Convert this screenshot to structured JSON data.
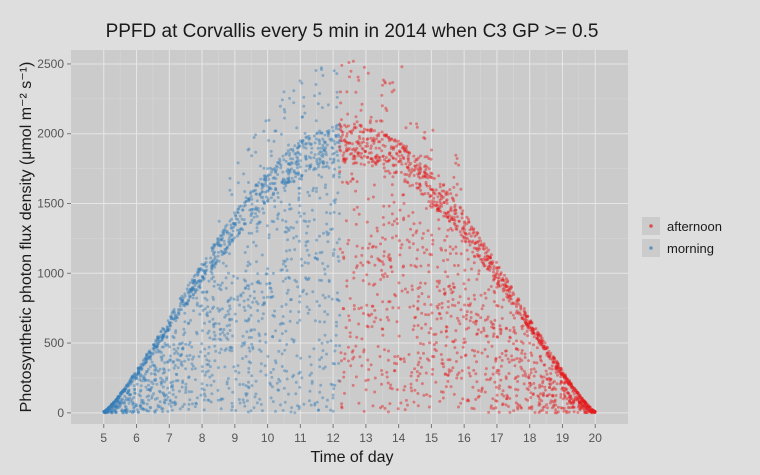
{
  "chart_data": {
    "type": "scatter",
    "title": "PPFD at Corvallis every 5 min in 2014 when C3 GP >= 0.5",
    "xlabel": "Time of day",
    "ylabel": "Photosynthetic photon flux density (μmol m⁻² s⁻¹)",
    "xlim": [
      4.0,
      21.0
    ],
    "ylim": [
      -80,
      2600
    ],
    "xticks": [
      5,
      6,
      7,
      8,
      9,
      10,
      11,
      12,
      13,
      14,
      15,
      16,
      17,
      18,
      19,
      20
    ],
    "yticks": [
      0,
      500,
      1000,
      1500,
      2000,
      2500
    ],
    "grid": true,
    "legend_position": "right",
    "series": [
      {
        "name": "afternoon",
        "color": "#e41a1c",
        "x_range": [
          12.2,
          20.0
        ],
        "envelope_peak": 2030,
        "max_outliers": 2500,
        "points": [
          [
            12.3,
            2010
          ],
          [
            12.8,
            1980
          ],
          [
            13.2,
            1950
          ],
          [
            13.5,
            2200
          ],
          [
            13.8,
            2300
          ],
          [
            14.1,
            2480
          ],
          [
            14.5,
            1800
          ],
          [
            15.0,
            1600
          ],
          [
            15.5,
            1400
          ],
          [
            16.0,
            1250
          ],
          [
            16.5,
            1100
          ],
          [
            17.0,
            900
          ],
          [
            17.5,
            700
          ],
          [
            18.0,
            500
          ],
          [
            18.5,
            300
          ],
          [
            19.0,
            180
          ],
          [
            19.5,
            60
          ],
          [
            20.0,
            10
          ]
        ]
      },
      {
        "name": "morning",
        "color": "#377eb8",
        "x_range": [
          5.0,
          12.2
        ],
        "envelope_peak": 2030,
        "max_outliers": 2460,
        "points": [
          [
            5.0,
            10
          ],
          [
            5.5,
            60
          ],
          [
            6.0,
            250
          ],
          [
            6.5,
            420
          ],
          [
            7.0,
            600
          ],
          [
            7.5,
            780
          ],
          [
            8.0,
            950
          ],
          [
            8.5,
            1150
          ],
          [
            9.0,
            1350
          ],
          [
            9.5,
            1550
          ],
          [
            10.0,
            1750
          ],
          [
            10.5,
            2300
          ],
          [
            11.0,
            1950
          ],
          [
            11.5,
            2000
          ],
          [
            12.0,
            2020
          ]
        ]
      }
    ]
  }
}
